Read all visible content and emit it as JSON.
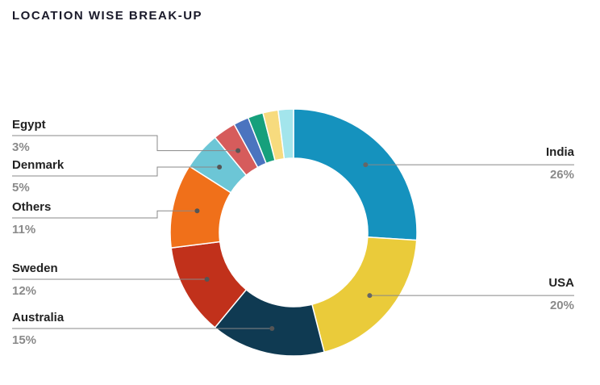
{
  "chart_data": {
    "type": "donut",
    "title": "LOCATION WISE BREAK-UP",
    "categories": [
      "India",
      "USA",
      "Australia",
      "Sweden",
      "Others",
      "Denmark",
      "Egypt",
      null,
      null,
      null,
      null
    ],
    "values": [
      26,
      20,
      15,
      12,
      11,
      5,
      3,
      2,
      2,
      2,
      2
    ],
    "value_labels": [
      "26%",
      "20%",
      "15%",
      "12%",
      "11%",
      "5%",
      "3%",
      null,
      null,
      null,
      null
    ],
    "colors": [
      "#1592be",
      "#eacb3a",
      "#0f3a52",
      "#c1311b",
      "#f0701a",
      "#6cc6d6",
      "#d65c5c",
      "#4b74bf",
      "#16a07c",
      "#f7db7e",
      "#a3e5ec"
    ]
  }
}
